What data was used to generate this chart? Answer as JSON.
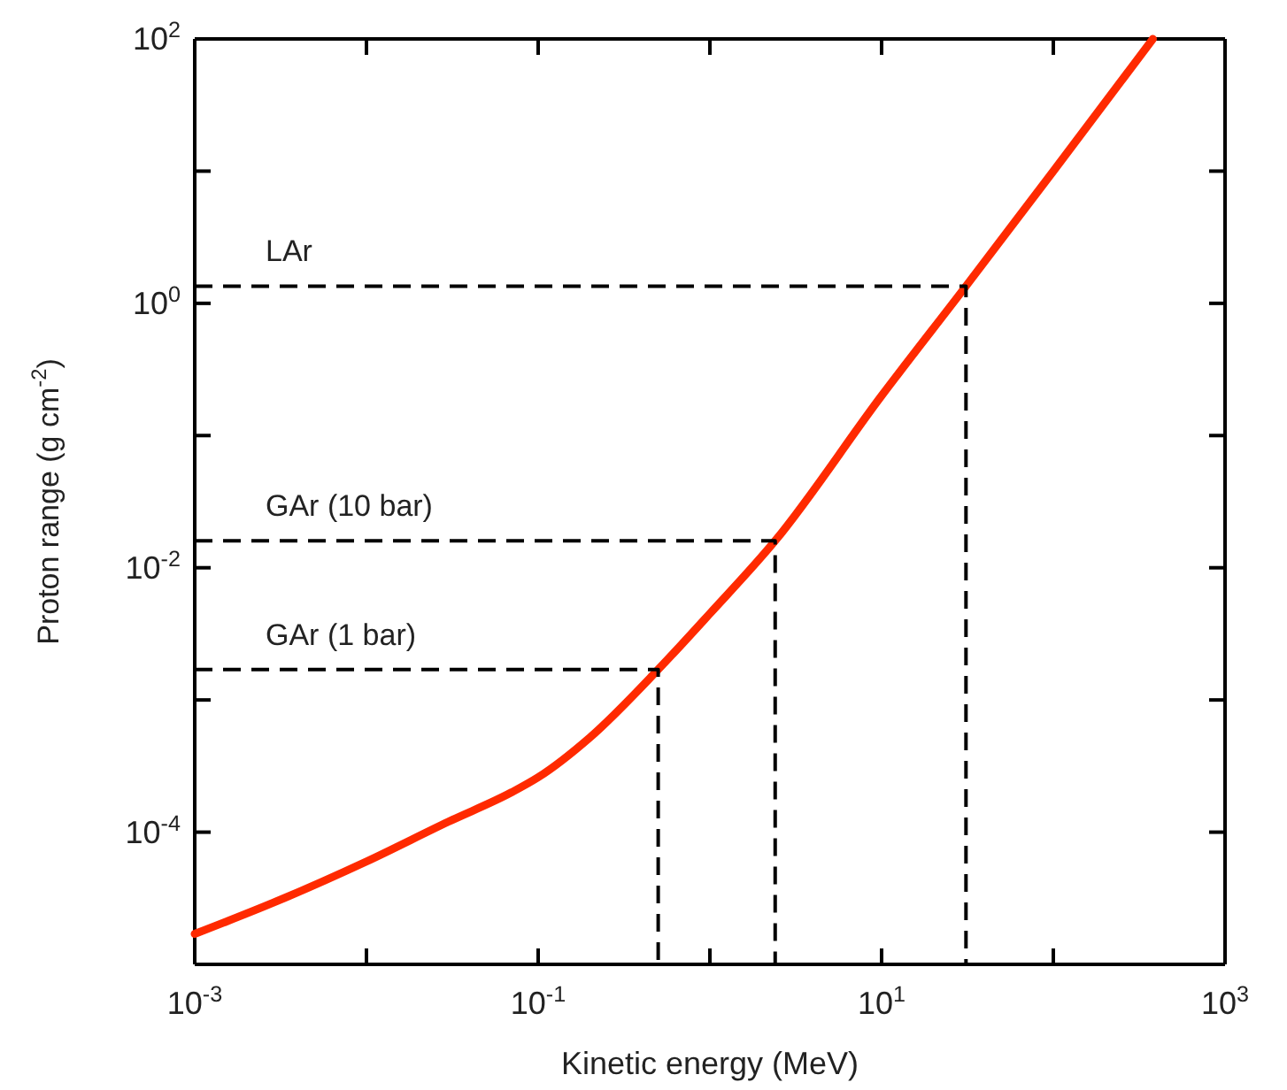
{
  "chart_data": {
    "type": "line",
    "xlabel": "Kinetic energy (MeV)",
    "ylabel": "Proton range (g cm$^{-2}$)",
    "log": "xy",
    "x": [
      0.001,
      0.003,
      0.01,
      0.03,
      0.07,
      0.1,
      0.2,
      0.5,
      1,
      2.4,
      10,
      31,
      100,
      380
    ],
    "series": [
      {
        "color": "#ff2a00",
        "values": [
          1.7e-05,
          3e-05,
          6e-05,
          0.00012,
          0.0002,
          0.00026,
          0.00052,
          0.0017,
          0.0045,
          0.016,
          0.2,
          1.35,
          10,
          100
        ]
      },
      {
        "name": "GAr (1 bar)",
        "color": "#000000",
        "line_style": "dashed",
        "x": [
          0.001,
          0.5,
          0.5
        ],
        "values": [
          0.0017,
          0.0017,
          1e-05
        ]
      },
      {
        "name": "GAr (10 bar)",
        "color": "#000000",
        "line_style": "dashed",
        "x": [
          0.001,
          2.4,
          2.4
        ],
        "values": [
          0.016,
          0.016,
          1e-05
        ]
      },
      {
        "name": "LAr",
        "color": "#000000",
        "line_style": "dashed",
        "x": [
          0.001,
          31,
          31
        ],
        "values": [
          1.35,
          1.35,
          1e-05
        ]
      }
    ],
    "xlim": [
      0.001,
      1000
    ],
    "ylim": [
      1e-05,
      100
    ],
    "xticks": [
      {
        "value": 0.001,
        "label": "10$^{-3}$"
      },
      {
        "value": 0.01,
        "label": null
      },
      {
        "value": 0.1,
        "label": "10$^{-1}$"
      },
      {
        "value": 1,
        "label": null
      },
      {
        "value": 10,
        "label": "10$^{1}$"
      },
      {
        "value": 100,
        "label": null
      },
      {
        "value": 1000,
        "label": "10$^{3}$"
      }
    ],
    "yticks": [
      {
        "value": 1e-05,
        "label": null
      },
      {
        "value": 0.0001,
        "label": "10$^{-4}$"
      },
      {
        "value": 0.001,
        "label": null
      },
      {
        "value": 0.01,
        "label": "10$^{-2}$"
      },
      {
        "value": 0.1,
        "label": null
      },
      {
        "value": 1,
        "label": "10$^{0}$"
      },
      {
        "value": 10,
        "label": null
      },
      {
        "value": 100,
        "label": "10$^{2}$"
      }
    ],
    "marker": "none",
    "line_style": "solid"
  }
}
